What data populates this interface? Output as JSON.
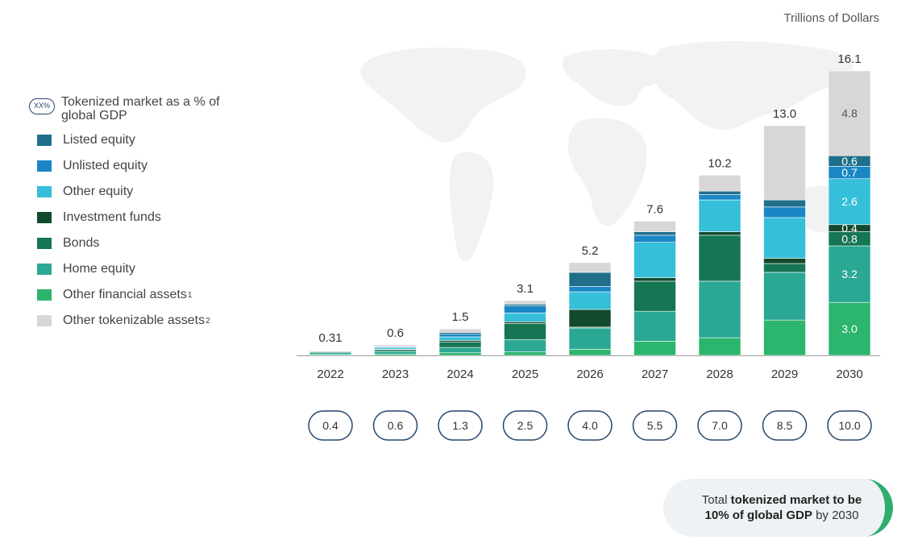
{
  "unit_label": "Trillions of Dollars",
  "legend": {
    "gdp_marker": "XX%",
    "gdp_label": "Tokenized market as a % of global GDP",
    "items": [
      {
        "label": "Listed equity",
        "sup": "",
        "color": "#1f6f8b"
      },
      {
        "label": "Unlisted equity",
        "sup": "",
        "color": "#1b86c6"
      },
      {
        "label": "Other equity",
        "sup": "",
        "color": "#35bfd8"
      },
      {
        "label": "Investment funds",
        "sup": "",
        "color": "#114a2c"
      },
      {
        "label": "Bonds",
        "sup": "",
        "color": "#167553"
      },
      {
        "label": "Home equity",
        "sup": "",
        "color": "#2aa894"
      },
      {
        "label": "Other financial assets",
        "sup": "1",
        "color": "#2cb56d"
      },
      {
        "label": "Other tokenizable assets",
        "sup": "2",
        "color": "#d7d7d7"
      }
    ]
  },
  "callout": {
    "part1": "Total ",
    "part2": "tokenized market to be",
    "part3": "10% of global GDP",
    "part4": " by 2030"
  },
  "chart_data": {
    "type": "bar",
    "stacked": true,
    "categories": [
      "2022",
      "2023",
      "2024",
      "2025",
      "2026",
      "2027",
      "2028",
      "2029",
      "2030"
    ],
    "totals": [
      "0.31",
      "0.6",
      "1.5",
      "3.1",
      "5.2",
      "7.6",
      "10.2",
      "13.0",
      "16.1"
    ],
    "gdp_percent": [
      "0.4",
      "0.6",
      "1.3",
      "2.5",
      "4.0",
      "5.5",
      "7.0",
      "8.5",
      "10.0"
    ],
    "series": [
      {
        "name": "Other financial assets",
        "color": "#2cb56d",
        "values": [
          0.05,
          0.08,
          0.15,
          0.2,
          0.35,
          0.8,
          1.0,
          2.0,
          3.0
        ],
        "labels": [
          "",
          "",
          "",
          "",
          "",
          "",
          "",
          "",
          "3.0"
        ]
      },
      {
        "name": "Home equity",
        "color": "#2aa894",
        "values": [
          0.1,
          0.15,
          0.3,
          0.7,
          1.2,
          1.7,
          3.2,
          2.7,
          3.2
        ],
        "labels": [
          "",
          "",
          "",
          "",
          "",
          "",
          "",
          "",
          "3.2"
        ]
      },
      {
        "name": "Bonds",
        "color": "#167553",
        "values": [
          0.06,
          0.1,
          0.3,
          0.9,
          0.05,
          1.7,
          2.6,
          0.5,
          0.8
        ],
        "labels": [
          "",
          "",
          "",
          "",
          "",
          "",
          "",
          "",
          "0.8"
        ]
      },
      {
        "name": "Investment funds",
        "color": "#114a2c",
        "values": [
          0.0,
          0.02,
          0.1,
          0.1,
          1.0,
          0.2,
          0.2,
          0.3,
          0.4
        ],
        "labels": [
          "",
          "",
          "",
          "",
          "",
          "",
          "",
          "",
          "0.4"
        ]
      },
      {
        "name": "Other equity",
        "color": "#35bfd8",
        "values": [
          0.03,
          0.08,
          0.2,
          0.5,
          1.0,
          2.0,
          1.8,
          2.3,
          2.6
        ],
        "labels": [
          "",
          "",
          "",
          "",
          "",
          "",
          "",
          "",
          "2.6"
        ]
      },
      {
        "name": "Unlisted equity",
        "color": "#1b86c6",
        "values": [
          0.02,
          0.05,
          0.15,
          0.4,
          0.3,
          0.4,
          0.3,
          0.6,
          0.7
        ],
        "labels": [
          "",
          "",
          "",
          "",
          "",
          "",
          "",
          "",
          "0.7"
        ]
      },
      {
        "name": "Listed equity",
        "color": "#1f6f8b",
        "values": [
          0.02,
          0.04,
          0.1,
          0.1,
          0.8,
          0.2,
          0.2,
          0.4,
          0.6
        ],
        "labels": [
          "",
          "",
          "",
          "",
          "",
          "",
          "",
          "",
          "0.6"
        ]
      },
      {
        "name": "Other tokenizable assets",
        "color": "#d7d7d7",
        "values": [
          0.03,
          0.08,
          0.2,
          0.2,
          0.55,
          0.6,
          0.9,
          4.2,
          4.8
        ],
        "labels": [
          "",
          "",
          "",
          "",
          "",
          "",
          "",
          "",
          "4.8"
        ]
      }
    ],
    "ylim": [
      0,
      16.1
    ],
    "grid": false
  }
}
